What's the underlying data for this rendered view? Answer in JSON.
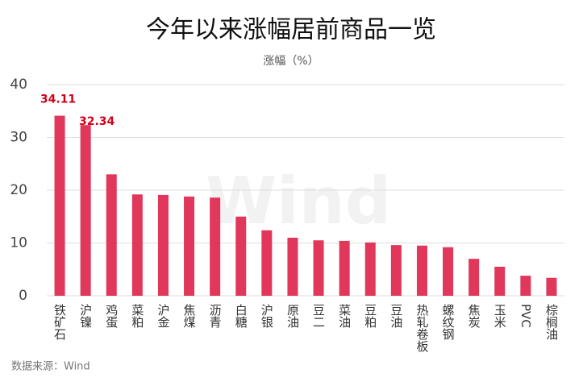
{
  "chart_data": {
    "type": "bar",
    "title": "今年以来涨幅居前商品一览",
    "subtitle": "涨幅（%）",
    "categories": [
      "铁矿石",
      "沪镍",
      "鸡蛋",
      "菜粕",
      "沪金",
      "焦煤",
      "沥青",
      "白糖",
      "沪银",
      "原油",
      "豆二",
      "菜油",
      "豆粕",
      "豆油",
      "热轧卷板",
      "螺纹钢",
      "焦炭",
      "玉米",
      "PVC",
      "棕榈油"
    ],
    "values": [
      34.11,
      32.34,
      23.0,
      19.2,
      19.1,
      18.8,
      18.6,
      15.0,
      12.4,
      11.0,
      10.5,
      10.4,
      10.1,
      9.6,
      9.5,
      9.2,
      7.0,
      5.5,
      3.8,
      3.4
    ],
    "value_labels": [
      "34.11",
      "32.34",
      null,
      null,
      null,
      null,
      null,
      null,
      null,
      null,
      null,
      null,
      null,
      null,
      null,
      null,
      null,
      null,
      null,
      null
    ],
    "color": "#e0375a",
    "label_color": "#d0021b",
    "ylim": [
      0,
      40
    ],
    "yticks": [
      0,
      10,
      20,
      30,
      40
    ],
    "grid": true,
    "watermark": "Wind",
    "source": "数据来源：Wind"
  }
}
